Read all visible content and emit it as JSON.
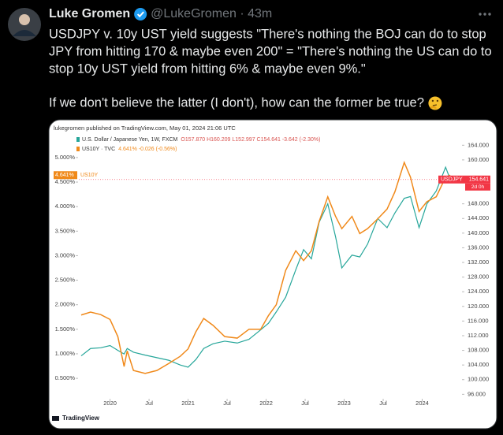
{
  "tweet": {
    "author": "Luke Gromen",
    "meta": "@LukeGromen · 43m",
    "lines": [
      "USDJPY v. 10y UST yield suggests \"There's nothing the BOJ can do to stop",
      "JPY from hitting 170 & maybe even 200\" = \"There's nothing the US can do to",
      "stop 10y UST yield from hitting 6% & maybe even 9%.\"",
      "If we don't believe the latter (I don't), how can the former be true?"
    ]
  },
  "chart_data": {
    "type": "line",
    "source": "lukegromen published on TradingView.com, May 01, 2024 21:06 UTC",
    "logo": "TradingView",
    "x": [
      2019.63,
      2019.75,
      2019.88,
      2020.0,
      2020.1,
      2020.18,
      2020.22,
      2020.3,
      2020.45,
      2020.6,
      2020.75,
      2020.9,
      2021.0,
      2021.1,
      2021.2,
      2021.32,
      2021.47,
      2021.63,
      2021.78,
      2021.93,
      2022.03,
      2022.13,
      2022.25,
      2022.38,
      2022.48,
      2022.58,
      2022.68,
      2022.79,
      2022.89,
      2022.97,
      2023.1,
      2023.2,
      2023.3,
      2023.43,
      2023.55,
      2023.65,
      2023.77,
      2023.85,
      2023.96,
      2024.06,
      2024.18,
      2024.3,
      2024.36
    ],
    "series": [
      {
        "name": "U.S. Dollar / Japanese Yen, 1W, FXCM",
        "legend_values": "O157.870 H160.209 L152.997 C154.641 -3.642 (-2.30%)",
        "color": "#26a69a",
        "axis": "y2",
        "values": [
          106.5,
          108.5,
          108.7,
          109.3,
          108,
          107,
          108.5,
          107.5,
          106.7,
          106,
          105.3,
          104,
          103.4,
          105.5,
          108.5,
          109.8,
          110.5,
          110,
          111,
          113.6,
          115.4,
          118.5,
          122.5,
          130,
          135.5,
          133,
          143,
          148,
          139,
          130.5,
          134,
          133.5,
          137,
          144,
          141.5,
          145.5,
          149.5,
          150,
          141.5,
          148,
          151.5,
          158,
          154.64
        ]
      },
      {
        "name": "US10Y · TVC",
        "legend_values": "4.641% -0.026 (-0.56%)",
        "color": "#f0891a",
        "axis": "y",
        "values": [
          1.79,
          1.85,
          1.8,
          1.7,
          1.35,
          0.74,
          1.06,
          0.66,
          0.6,
          0.66,
          0.8,
          0.95,
          1.1,
          1.45,
          1.72,
          1.58,
          1.35,
          1.32,
          1.5,
          1.5,
          1.78,
          2.0,
          2.7,
          3.1,
          2.9,
          3.1,
          3.7,
          4.2,
          3.8,
          3.55,
          3.8,
          3.45,
          3.55,
          3.75,
          3.95,
          4.3,
          4.9,
          4.6,
          3.9,
          4.1,
          4.2,
          4.6,
          4.64
        ]
      }
    ],
    "xlim": [
      2019.6,
      2024.5
    ],
    "xticks": [
      2020,
      {
        "value": 2020.5,
        "label": "Jul"
      },
      2021,
      {
        "value": 2021.5,
        "label": "Jul"
      },
      2022,
      {
        "value": 2022.5,
        "label": "Jul"
      },
      2023,
      {
        "value": 2023.5,
        "label": "Jul"
      },
      2024
    ],
    "ylim": [
      0.1,
      5.4
    ],
    "yticks": [
      {
        "value": 0.5,
        "label": "0.500%"
      },
      {
        "value": 1,
        "label": "1.000%"
      },
      {
        "value": 1.5,
        "label": "1.500%"
      },
      {
        "value": 2,
        "label": "2.000%"
      },
      {
        "value": 2.5,
        "label": "2.500%"
      },
      {
        "value": 3,
        "label": "3.000%"
      },
      {
        "value": 3.5,
        "label": "3.500%"
      },
      {
        "value": 4,
        "label": "4.000%"
      },
      {
        "value": 4.5,
        "label": "4.500%"
      },
      {
        "value": 5,
        "label": "5.000%"
      }
    ],
    "y2lim": [
      95,
      166
    ],
    "y2ticks": [
      {
        "value": 96,
        "label": "96.000"
      },
      {
        "value": 100,
        "label": "100.000"
      },
      {
        "value": 104,
        "label": "104.000"
      },
      {
        "value": 108,
        "label": "108.000"
      },
      {
        "value": 112,
        "label": "112.000"
      },
      {
        "value": 116,
        "label": "116.000"
      },
      {
        "value": 120,
        "label": "120.000"
      },
      {
        "value": 124,
        "label": "124.000"
      },
      {
        "value": 128,
        "label": "128.000"
      },
      {
        "value": 132,
        "label": "132.000"
      },
      {
        "value": 136,
        "label": "136.000"
      },
      {
        "value": 140,
        "label": "140.000"
      },
      {
        "value": 144,
        "label": "144.000"
      },
      {
        "value": 148,
        "label": "148.000"
      },
      {
        "value": 160,
        "label": "160.000"
      },
      {
        "value": 164,
        "label": "164.000"
      }
    ],
    "grid": false,
    "markers": [
      {
        "value": 4.641,
        "label": "4.641%",
        "name": "US10Y",
        "axis": "y",
        "color": "#f0891a"
      },
      {
        "value": 154.641,
        "label": "154.641",
        "name": "USDJPY",
        "axis": "y2",
        "note": "2d 0h",
        "color": "#f23645"
      }
    ]
  }
}
